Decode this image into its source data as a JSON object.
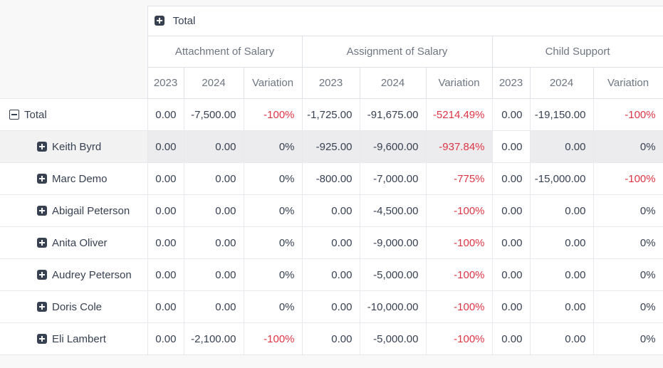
{
  "pivot": {
    "total_header": {
      "label": "Total",
      "icon": "plus-square-icon"
    },
    "groups": [
      {
        "label": "Attachment of Salary"
      },
      {
        "label": "Assignment of Salary"
      },
      {
        "label": "Child Support"
      }
    ],
    "subheaders": [
      "2023",
      "2024",
      "Variation",
      "2023",
      "2024",
      "Variation",
      "2023",
      "2024",
      "Variation"
    ],
    "rows": [
      {
        "label": "Total",
        "icon": "minus-square-icon",
        "indent": 0,
        "highlighted": false,
        "cells": [
          "0.00",
          "-7,500.00",
          "-100%",
          "-1,725.00",
          "-91,675.00",
          "-5214.49%",
          "0.00",
          "-19,150.00",
          "-100%"
        ]
      },
      {
        "label": "Keith Byrd",
        "icon": "plus-square-icon",
        "indent": 1,
        "highlighted": true,
        "plain_cells": [
          6
        ],
        "cells": [
          "0.00",
          "0.00",
          "0%",
          "-925.00",
          "-9,600.00",
          "-937.84%",
          "0.00",
          "0.00",
          "0%"
        ]
      },
      {
        "label": "Marc Demo",
        "icon": "plus-square-icon",
        "indent": 1,
        "highlighted": false,
        "cells": [
          "0.00",
          "0.00",
          "0%",
          "-800.00",
          "-7,000.00",
          "-775%",
          "0.00",
          "-15,000.00",
          "-100%"
        ]
      },
      {
        "label": "Abigail Peterson",
        "icon": "plus-square-icon",
        "indent": 1,
        "highlighted": false,
        "cells": [
          "0.00",
          "0.00",
          "0%",
          "0.00",
          "-4,500.00",
          "-100%",
          "0.00",
          "0.00",
          "0%"
        ]
      },
      {
        "label": "Anita Oliver",
        "icon": "plus-square-icon",
        "indent": 1,
        "highlighted": false,
        "cells": [
          "0.00",
          "0.00",
          "0%",
          "0.00",
          "-9,000.00",
          "-100%",
          "0.00",
          "0.00",
          "0%"
        ]
      },
      {
        "label": "Audrey Peterson",
        "icon": "plus-square-icon",
        "indent": 1,
        "highlighted": false,
        "cells": [
          "0.00",
          "0.00",
          "0%",
          "0.00",
          "-5,000.00",
          "-100%",
          "0.00",
          "0.00",
          "0%"
        ]
      },
      {
        "label": "Doris Cole",
        "icon": "plus-square-icon",
        "indent": 1,
        "highlighted": false,
        "cells": [
          "0.00",
          "0.00",
          "0%",
          "0.00",
          "-10,000.00",
          "-100%",
          "0.00",
          "0.00",
          "0%"
        ]
      },
      {
        "label": "Eli Lambert",
        "icon": "plus-square-icon",
        "indent": 1,
        "highlighted": false,
        "cells": [
          "0.00",
          "-2,100.00",
          "-100%",
          "0.00",
          "-5,000.00",
          "-100%",
          "0.00",
          "0.00",
          "0%"
        ]
      }
    ],
    "colors": {
      "negative": "#dc3545",
      "text": "#374151",
      "header_text": "#6e7681",
      "icon": "#374151",
      "page_bg": "#f8f8f8",
      "highlighted_cell_bg": "#ececee"
    }
  }
}
